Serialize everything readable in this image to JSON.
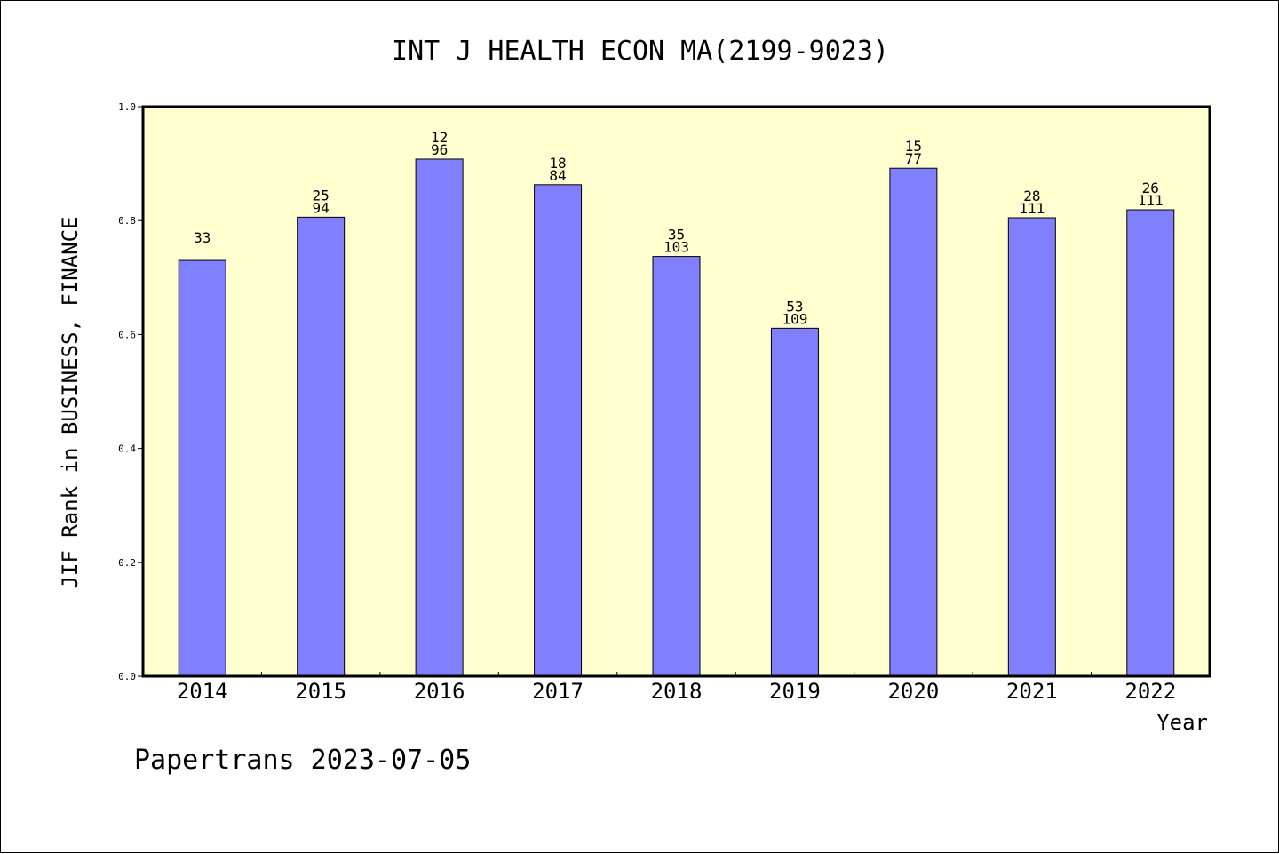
{
  "chart_data": {
    "type": "bar",
    "title": "INT J HEALTH ECON MA(2199-9023)",
    "xlabel": "Year",
    "ylabel": "JIF Rank in BUSINESS, FINANCE",
    "categories": [
      "2014",
      "2015",
      "2016",
      "2017",
      "2018",
      "2019",
      "2020",
      "2021",
      "2022"
    ],
    "values": [
      0.73,
      0.806,
      0.908,
      0.863,
      0.737,
      0.611,
      0.892,
      0.805,
      0.819
    ],
    "label_top": [
      "",
      "25",
      "12",
      "18",
      "35",
      "53",
      "15",
      "28",
      "26"
    ],
    "label_bottom": [
      "33",
      "94",
      "96",
      "84",
      "103",
      "109",
      "77",
      "111",
      "111"
    ],
    "ylim": [
      0,
      1.0
    ],
    "yticks": [
      "0.0",
      "0.2",
      "0.4",
      "0.6",
      "0.8",
      "1.0"
    ],
    "grid": false,
    "colors": {
      "bar": "#8080ff",
      "plot_bg": "#ffffd0",
      "axis": "#000000"
    }
  },
  "footer": {
    "text": "Papertrans 2023-07-05"
  }
}
